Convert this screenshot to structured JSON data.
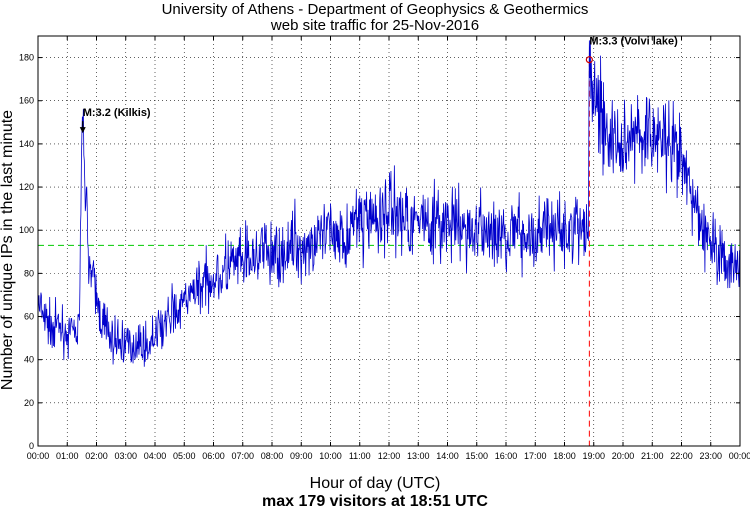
{
  "chart_data": {
    "type": "line",
    "title": "University of Athens - Department of Geophysics & Geothermics",
    "subtitle": "web site traffic for 25-Nov-2016",
    "xlabel": "Hour of day (UTC)",
    "ylabel": "Number of unique IPs in the last minute",
    "footer": "max 179 visitors at 18:51 UTC",
    "x_unit": "hour of day (UTC)",
    "xlim": [
      0,
      24
    ],
    "ylim": [
      0,
      190
    ],
    "x_ticks": [
      0,
      1,
      2,
      3,
      4,
      5,
      6,
      7,
      8,
      9,
      10,
      11,
      12,
      13,
      14,
      15,
      16,
      17,
      18,
      19,
      20,
      21,
      22,
      23,
      24
    ],
    "x_tick_labels": [
      "00:00",
      "01:00",
      "02:00",
      "03:00",
      "04:00",
      "05:00",
      "06:00",
      "07:00",
      "08:00",
      "09:00",
      "10:00",
      "11:00",
      "12:00",
      "13:00",
      "14:00",
      "15:00",
      "16:00",
      "17:00",
      "18:00",
      "19:00",
      "20:00",
      "21:00",
      "22:00",
      "23:00",
      "00:00"
    ],
    "y_ticks": [
      0,
      20,
      40,
      60,
      80,
      100,
      120,
      140,
      160,
      180
    ],
    "y_tick_labels": [
      "0",
      "20",
      "40",
      "60",
      "80",
      "100",
      "120",
      "140",
      "160",
      "180"
    ],
    "grid": true,
    "series": [
      {
        "color": "#0000cc",
        "x": [
          0,
          0.25,
          0.5,
          0.75,
          1,
          1.25,
          1.4,
          1.5,
          1.55,
          1.6,
          1.7,
          1.8,
          2,
          2.25,
          2.5,
          2.75,
          3,
          3.25,
          3.5,
          3.75,
          4,
          4.25,
          4.5,
          4.75,
          5,
          5.25,
          5.5,
          5.75,
          6,
          6.25,
          6.5,
          6.75,
          7,
          7.25,
          7.5,
          7.75,
          8,
          8.25,
          8.5,
          8.75,
          9,
          9.25,
          9.5,
          9.75,
          10,
          10.25,
          10.5,
          10.75,
          11,
          11.25,
          11.5,
          11.75,
          12,
          12.25,
          12.5,
          12.75,
          13,
          13.25,
          13.5,
          13.75,
          14,
          14.25,
          14.5,
          14.75,
          15,
          15.25,
          15.5,
          15.75,
          16,
          16.25,
          16.5,
          16.75,
          17,
          17.25,
          17.5,
          17.75,
          18,
          18.25,
          18.5,
          18.75,
          18.8,
          18.85,
          18.95,
          19.1,
          19.3,
          19.5,
          19.75,
          20,
          20.25,
          20.5,
          20.75,
          21,
          21.25,
          21.5,
          21.75,
          22,
          22.25,
          22.5,
          22.75,
          23,
          23.25,
          23.5,
          23.75,
          24
        ],
        "values": [
          65,
          58,
          55,
          56,
          52,
          50,
          55,
          130,
          145,
          128,
          95,
          80,
          68,
          56,
          50,
          48,
          48,
          46,
          48,
          46,
          50,
          55,
          60,
          62,
          66,
          70,
          74,
          77,
          78,
          80,
          82,
          84,
          84,
          86,
          88,
          90,
          88,
          88,
          90,
          92,
          92,
          94,
          95,
          96,
          98,
          99,
          100,
          102,
          103,
          104,
          106,
          108,
          110,
          108,
          106,
          106,
          105,
          104,
          103,
          102,
          102,
          101,
          100,
          100,
          99,
          99,
          98,
          98,
          98,
          98,
          98,
          98,
          100,
          101,
          100,
          100,
          100,
          100,
          100,
          100,
          100,
          172,
          168,
          160,
          150,
          142,
          140,
          142,
          143,
          144,
          145,
          146,
          142,
          138,
          136,
          130,
          120,
          110,
          100,
          95,
          90,
          86,
          84,
          82
        ]
      }
    ],
    "reference_lines": [
      {
        "axis": "y",
        "value": 93,
        "color": "#00cc00",
        "style": "dashed"
      },
      {
        "axis": "x",
        "value": 18.85,
        "color": "#ff0000",
        "style": "dashed"
      }
    ],
    "annotations": [
      {
        "text": "M:3.2 (Kilkis)",
        "x": 1.53,
        "y": 145,
        "marker": "arrow"
      },
      {
        "text": "M:3.3 (Volvi lake)",
        "x": 18.85,
        "y": 179,
        "marker": "circle"
      }
    ]
  }
}
